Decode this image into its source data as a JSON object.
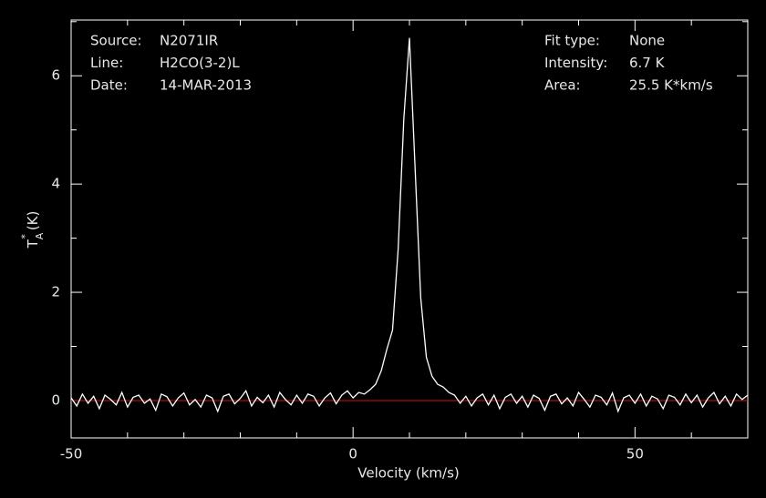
{
  "chart_data": {
    "type": "line",
    "xlabel": "Velocity (km/s)",
    "ylabel": {
      "main": "T",
      "sup": "*",
      "sub": "A",
      "unit": "(K)"
    },
    "info_left": [
      {
        "label": "Source:",
        "value": "N2071IR"
      },
      {
        "label": "Line:",
        "value": "H2CO(3-2)L"
      },
      {
        "label": "Date:",
        "value": "14-MAR-2013"
      }
    ],
    "info_right": [
      {
        "label": "Fit type:",
        "value": "None"
      },
      {
        "label": "Intensity:",
        "value": "6.7 K"
      },
      {
        "label": "Area:",
        "value": "25.5 K*km/s"
      }
    ],
    "xlim": [
      -50,
      70
    ],
    "ylim": [
      -0.69,
      7.03
    ],
    "xticks": [
      -50,
      0,
      50
    ],
    "xminorticks": [
      -40,
      -30,
      -20,
      -10,
      10,
      20,
      30,
      40,
      60,
      70
    ],
    "yticks": [
      0,
      2,
      4,
      6
    ],
    "yminorticks": [
      1,
      3,
      5,
      7
    ],
    "baseline": 0,
    "baseline_color": "#d01010",
    "series": [
      {
        "color": "#ffffff",
        "x": [
          -50,
          -49,
          -48,
          -47,
          -46,
          -45,
          -44,
          -43,
          -42,
          -41,
          -40,
          -39,
          -38,
          -37,
          -36,
          -35,
          -34,
          -33,
          -32,
          -31,
          -30,
          -29,
          -28,
          -27,
          -26,
          -25,
          -24,
          -23,
          -22,
          -21,
          -20,
          -19,
          -18,
          -17,
          -16,
          -15,
          -14,
          -13,
          -12,
          -11,
          -10,
          -9,
          -8,
          -7,
          -6,
          -5,
          -4,
          -3,
          -2,
          -1,
          0,
          1,
          2,
          3,
          4,
          5,
          6,
          7,
          8,
          9,
          10,
          11,
          12,
          13,
          14,
          15,
          16,
          17,
          18,
          19,
          20,
          21,
          22,
          23,
          24,
          25,
          26,
          27,
          28,
          29,
          30,
          31,
          32,
          33,
          34,
          35,
          36,
          37,
          38,
          39,
          40,
          41,
          42,
          43,
          44,
          45,
          46,
          47,
          48,
          49,
          50,
          51,
          52,
          53,
          54,
          55,
          56,
          57,
          58,
          59,
          60,
          61,
          62,
          63,
          64,
          65,
          66,
          67,
          68,
          69,
          70
        ],
        "values": [
          0.05,
          -0.1,
          0.12,
          -0.05,
          0.08,
          -0.15,
          0.1,
          0.02,
          -0.08,
          0.15,
          -0.12,
          0.06,
          0.1,
          -0.05,
          0.03,
          -0.18,
          0.12,
          0.07,
          -0.1,
          0.05,
          0.14,
          -0.08,
          0.02,
          -0.12,
          0.1,
          0.05,
          -0.2,
          0.08,
          0.12,
          -0.06,
          0.04,
          0.18,
          -0.1,
          0.06,
          -0.04,
          0.1,
          -0.12,
          0.15,
          0.02,
          -0.08,
          0.1,
          -0.05,
          0.12,
          0.08,
          -0.1,
          0.05,
          0.14,
          -0.06,
          0.1,
          0.18,
          0.05,
          0.15,
          0.12,
          0.2,
          0.3,
          0.55,
          0.95,
          1.3,
          2.8,
          5.2,
          6.7,
          4.3,
          1.9,
          0.8,
          0.45,
          0.3,
          0.25,
          0.15,
          0.1,
          -0.05,
          0.08,
          -0.1,
          0.05,
          0.12,
          -0.08,
          0.1,
          -0.15,
          0.06,
          0.12,
          -0.05,
          0.08,
          -0.12,
          0.1,
          0.04,
          -0.18,
          0.08,
          0.12,
          -0.06,
          0.05,
          -0.1,
          0.15,
          0.02,
          -0.12,
          0.1,
          0.06,
          -0.08,
          0.14,
          -0.2,
          0.05,
          0.1,
          -0.05,
          0.12,
          -0.1,
          0.08,
          0.03,
          -0.15,
          0.1,
          0.06,
          -0.08,
          0.12,
          -0.04,
          0.1,
          -0.12,
          0.05,
          0.15,
          -0.06,
          0.08,
          -0.1,
          0.12,
          0.02,
          0.1
        ]
      }
    ]
  }
}
